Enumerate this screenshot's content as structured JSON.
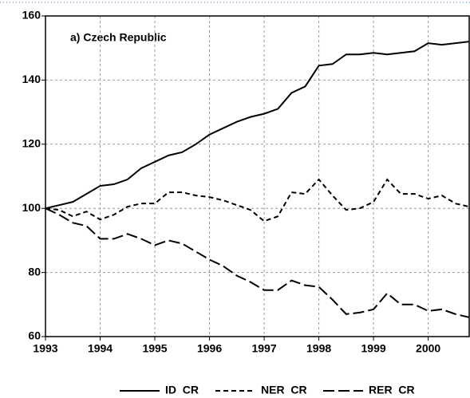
{
  "chart_data": {
    "type": "line",
    "annotation": "a) Czech Republic",
    "x": [
      1993,
      1993.25,
      1993.5,
      1993.75,
      1994,
      1994.25,
      1994.5,
      1994.75,
      1995,
      1995.25,
      1995.5,
      1995.75,
      1996,
      1996.25,
      1996.5,
      1996.75,
      1997,
      1997.25,
      1997.5,
      1997.75,
      1998,
      1998.25,
      1998.5,
      1998.75,
      1999,
      1999.25,
      1999.5,
      1999.75,
      2000,
      2000.25,
      2000.5,
      2000.75
    ],
    "series": [
      {
        "name": "ID  CR",
        "color": "#000000",
        "dash": "none",
        "values": [
          100,
          101,
          102,
          104.5,
          107,
          107.5,
          109,
          112.5,
          114.5,
          116.5,
          117.5,
          120,
          123,
          125,
          127,
          128.5,
          129.5,
          131,
          136,
          138,
          144.5,
          145,
          148,
          148,
          148.5,
          148,
          148.5,
          149,
          151.5,
          151,
          151.5,
          152
        ]
      },
      {
        "name": "NER  CR",
        "color": "#000000",
        "dash": "6,4",
        "values": [
          100,
          99.5,
          97.5,
          99,
          96.5,
          98,
          100.5,
          101.5,
          101.5,
          105,
          105,
          104,
          103.5,
          102.5,
          101,
          99.5,
          96,
          97.5,
          105,
          104.5,
          109,
          104,
          99.5,
          100,
          102,
          109,
          104.5,
          104.5,
          103,
          104,
          101.5,
          100.5
        ]
      },
      {
        "name": "RER  CR",
        "color": "#000000",
        "dash": "14,5",
        "values": [
          100,
          98,
          95.5,
          94.5,
          90.5,
          90.5,
          92,
          90.5,
          88.5,
          90,
          89,
          86.5,
          84,
          82,
          79,
          77,
          74.5,
          74.5,
          77.5,
          76,
          75.5,
          71.5,
          67,
          67.5,
          68.5,
          73.5,
          70,
          70,
          68,
          68.5,
          67,
          66
        ]
      }
    ],
    "xlim": [
      1993,
      2000.75
    ],
    "xticks": [
      1993,
      1994,
      1995,
      1996,
      1997,
      1998,
      1999,
      2000
    ],
    "ylim": [
      60,
      160
    ],
    "yticks": [
      60,
      80,
      100,
      120,
      140,
      160
    ],
    "grid": true,
    "legend": "bottom"
  }
}
